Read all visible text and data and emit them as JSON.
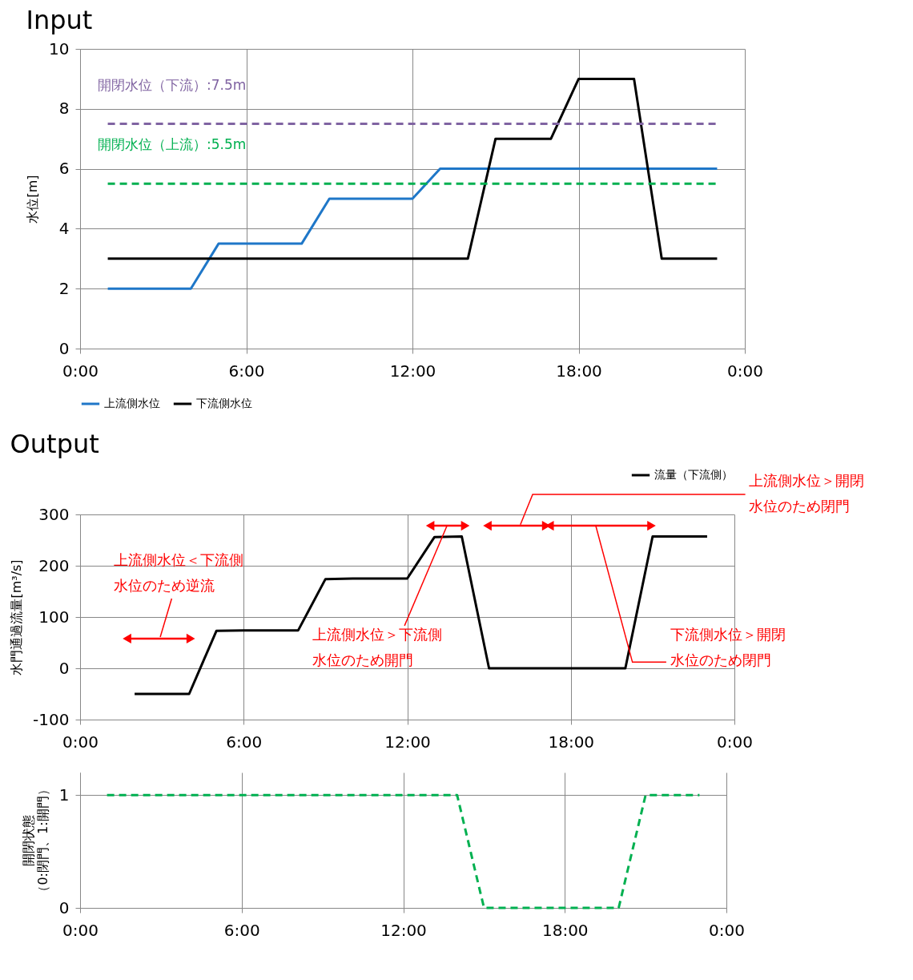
{
  "chart_data": [
    {
      "type": "line",
      "title": "Input",
      "ylabel": "水位[m]",
      "x": [
        1,
        2,
        3,
        4,
        5,
        6,
        7,
        8,
        9,
        10,
        11,
        12,
        13,
        14,
        15,
        16,
        17,
        18,
        19,
        20,
        21,
        22,
        23
      ],
      "series": [
        {
          "name": "上流側水位",
          "color": "#1f77c8",
          "values": [
            2,
            2,
            2,
            2,
            3.5,
            3.5,
            3.5,
            3.5,
            5,
            5,
            5,
            5,
            6,
            6,
            6,
            6,
            6,
            6,
            6,
            6,
            6,
            6,
            6
          ]
        },
        {
          "name": "下流側水位",
          "color": "#000000",
          "values": [
            3,
            3,
            3,
            3,
            3,
            3,
            3,
            3,
            3,
            3,
            3,
            3,
            3,
            3,
            7,
            7,
            7,
            9,
            9,
            9,
            3,
            3,
            3
          ]
        }
      ],
      "xlim": [
        0,
        24
      ],
      "xticks": [
        {
          "value": 0,
          "label": "0:00"
        },
        {
          "value": 6,
          "label": "6:00"
        },
        {
          "value": 12,
          "label": "12:00"
        },
        {
          "value": 18,
          "label": "18:00"
        },
        {
          "value": 24,
          "label": "0:00"
        }
      ],
      "ylim": [
        0,
        10
      ],
      "yticks": [
        0,
        2,
        4,
        6,
        8,
        10
      ],
      "ref_lines": [
        {
          "axis": "y",
          "value": 7.5,
          "label": "開閉水位（下流）:7.5m",
          "color": "#8064a2",
          "line_style": "dashed"
        },
        {
          "axis": "y",
          "value": 5.5,
          "label": "開閉水位（上流）:5.5m",
          "color": "#00b050",
          "line_style": "dashed"
        }
      ],
      "grid": true,
      "legend": "bottom",
      "line_style": "solid"
    },
    {
      "type": "line",
      "title": "Output",
      "ylabel": "水門通過流量[m³/s]",
      "x": [
        2,
        3,
        4,
        5,
        6,
        7,
        8,
        9,
        10,
        11,
        12,
        13,
        14,
        15,
        16,
        17,
        18,
        19,
        20,
        21,
        22,
        23
      ],
      "series": [
        {
          "name": "流量（下流側）",
          "color": "#000000",
          "values": [
            -50,
            -50,
            -50,
            73,
            74,
            74,
            74,
            174,
            175,
            175,
            175,
            256,
            257,
            0,
            0,
            0,
            0,
            0,
            0,
            257,
            257,
            257
          ]
        }
      ],
      "xlim": [
        0,
        24
      ],
      "xticks": [
        {
          "value": 0,
          "label": "0:00"
        },
        {
          "value": 6,
          "label": "6:00"
        },
        {
          "value": 12,
          "label": "12:00"
        },
        {
          "value": 18,
          "label": "18:00"
        },
        {
          "value": 24,
          "label": "0:00"
        }
      ],
      "ylim": [
        -100,
        300
      ],
      "yticks": [
        -100,
        0,
        100,
        200,
        300
      ],
      "annotations": [
        "上流側水位＜下流側水位のため逆流",
        "上流側水位＞下流側水位のため開門",
        "下流側水位＞開閉水位のため閉門",
        "上流側水位＞開閉水位のため閉門"
      ],
      "grid": true,
      "legend": "top right",
      "line_style": "solid"
    },
    {
      "type": "line",
      "ylabel": "開閉状態（0:閉門、1:開門）",
      "x": [
        1,
        2,
        3,
        4,
        5,
        6,
        7,
        8,
        9,
        10,
        11,
        12,
        13,
        14,
        15,
        16,
        17,
        18,
        19,
        20,
        21,
        22,
        23
      ],
      "series": [
        {
          "color": "#00b050",
          "values": [
            1,
            1,
            1,
            1,
            1,
            1,
            1,
            1,
            1,
            1,
            1,
            1,
            1,
            1,
            0,
            0,
            0,
            0,
            0,
            0,
            1,
            1,
            1
          ]
        }
      ],
      "xlim": [
        0,
        24
      ],
      "xticks": [
        {
          "value": 0,
          "label": "0:00"
        },
        {
          "value": 6,
          "label": "6:00"
        },
        {
          "value": 12,
          "label": "12:00"
        },
        {
          "value": 18,
          "label": "18:00"
        },
        {
          "value": 24,
          "label": "0:00"
        }
      ],
      "ylim": [
        0,
        1.2
      ],
      "yticks": [
        0,
        1
      ],
      "grid": true,
      "line_style": "dashed"
    }
  ]
}
